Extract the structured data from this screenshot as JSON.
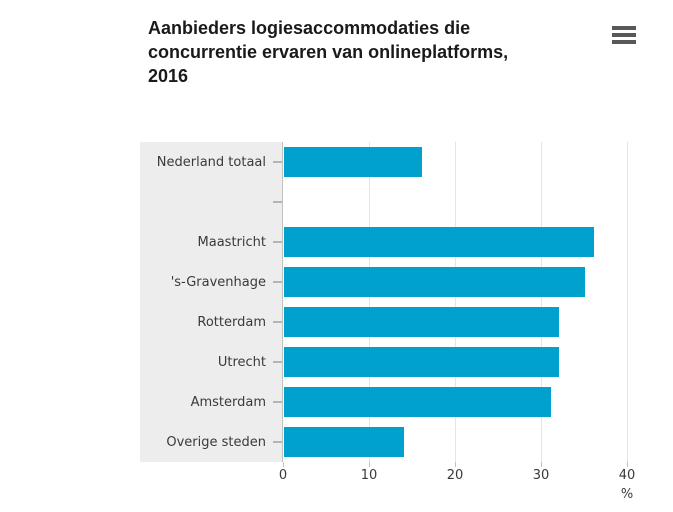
{
  "header": {
    "title_lines": [
      "Aanbieders logiesaccommodaties die",
      "concurrentie ervaren van onlineplatforms,",
      "2016"
    ],
    "menu_icon": "hamburger-menu-icon"
  },
  "chart_data": {
    "type": "bar",
    "orientation": "horizontal",
    "title": "Aanbieders logiesaccommodaties die concurrentie ervaren van onlineplatforms, 2016",
    "categories": [
      "Nederland totaal",
      "",
      "Maastricht",
      "'s-Gravenhage",
      "Rotterdam",
      "Utrecht",
      "Amsterdam",
      "Overige steden"
    ],
    "values": [
      16,
      null,
      36,
      35,
      32,
      32,
      31,
      14
    ],
    "xlabel": "%",
    "xlim": [
      0,
      40
    ],
    "xticks": [
      0,
      10,
      20,
      30,
      40
    ],
    "grid": true,
    "legend": false,
    "colors": {
      "bar": "#00a1cd",
      "label_panel_bg": "#ededed",
      "axis_line": "#c2c2c2",
      "gridline": "#e4e4e4",
      "category_tick": "#b5b5b5",
      "xaxis_tick": "#c2c2c2",
      "title_text": "#1a1a1a",
      "label_text": "#3a3a3a"
    }
  }
}
